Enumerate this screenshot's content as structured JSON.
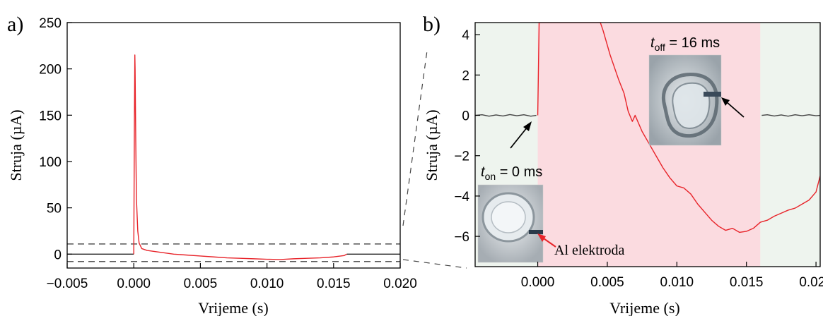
{
  "chart_data": [
    {
      "panel_label": "a)",
      "type": "line",
      "xlabel": "Vrijeme (s)",
      "ylabel": "Struja (µA)",
      "xlim": [
        -0.005,
        0.02
      ],
      "ylim": [
        -15,
        250
      ],
      "xticks": [
        -0.005,
        0.0,
        0.005,
        0.01,
        0.015,
        0.02
      ],
      "xtick_labels": [
        "−0.005",
        "0.000",
        "0.005",
        "0.010",
        "0.015",
        "0.020"
      ],
      "yticks": [
        0,
        50,
        100,
        150,
        200,
        250
      ],
      "ytick_labels": [
        "0",
        "50",
        "100",
        "150",
        "200",
        "250"
      ],
      "grid": false,
      "series": [
        {
          "color": "#222222",
          "points": [
            [
              -0.005,
              0
            ],
            [
              0.0,
              0
            ]
          ]
        },
        {
          "color": "#e8242a",
          "points": [
            [
              0.0,
              0
            ],
            [
              2e-05,
              60
            ],
            [
              5e-05,
              150
            ],
            [
              8e-05,
              215
            ],
            [
              0.0001,
              200
            ],
            [
              0.00015,
              120
            ],
            [
              0.0002,
              60
            ],
            [
              0.0003,
              25
            ],
            [
              0.0004,
              12
            ],
            [
              0.0006,
              6
            ],
            [
              0.001,
              4
            ],
            [
              0.002,
              2
            ],
            [
              0.003,
              0
            ],
            [
              0.004,
              -1
            ],
            [
              0.005,
              -2
            ],
            [
              0.006,
              -3
            ],
            [
              0.007,
              -4
            ],
            [
              0.008,
              -4.5
            ],
            [
              0.009,
              -5
            ],
            [
              0.01,
              -5.5
            ],
            [
              0.011,
              -5.8
            ],
            [
              0.012,
              -5
            ],
            [
              0.013,
              -4.5
            ],
            [
              0.014,
              -4
            ],
            [
              0.015,
              -3
            ],
            [
              0.0158,
              -1.5
            ],
            [
              0.016,
              0
            ]
          ]
        },
        {
          "color": "#222222",
          "points": [
            [
              0.016,
              0
            ],
            [
              0.02,
              0
            ]
          ]
        }
      ],
      "reference_lines": [
        {
          "y": 11,
          "style": "dashed",
          "color": "#555555"
        },
        {
          "y": -8,
          "style": "dashed",
          "color": "#555555"
        }
      ]
    },
    {
      "panel_label": "b)",
      "type": "line",
      "xlabel": "Vrijeme (s)",
      "ylabel": "Struja (µA)",
      "xlim": [
        -0.0045,
        0.0203
      ],
      "ylim": [
        -7.5,
        4.6
      ],
      "xticks": [
        0.0,
        0.005,
        0.01,
        0.015,
        0.02
      ],
      "xtick_labels": [
        "0.000",
        "0.005",
        "0.010",
        "0.015",
        "0.020"
      ],
      "yticks": [
        -6,
        -4,
        -2,
        0,
        2,
        4
      ],
      "ytick_labels": [
        "−6",
        "−4",
        "−2",
        "0",
        "2",
        "4"
      ],
      "grid": false,
      "shaded_regions": [
        {
          "x": [
            -0.0045,
            0.0
          ],
          "color": "#eef4ee"
        },
        {
          "x": [
            0.0,
            0.016
          ],
          "color": "#fbdbe0"
        },
        {
          "x": [
            0.016,
            0.0203
          ],
          "color": "#eef4ee"
        }
      ],
      "series": [
        {
          "color": "#444444",
          "points": [
            [
              -0.0045,
              0.0
            ],
            [
              -0.004,
              0.03
            ],
            [
              -0.0035,
              -0.04
            ],
            [
              -0.003,
              0.02
            ],
            [
              -0.0025,
              -0.03
            ],
            [
              -0.002,
              0.04
            ],
            [
              -0.0015,
              -0.02
            ],
            [
              -0.001,
              0.03
            ],
            [
              -0.0005,
              -0.04
            ],
            [
              -0.0001,
              0.0
            ]
          ]
        },
        {
          "color": "#e8242a",
          "points": [
            [
              0.0,
              0.0
            ],
            [
              0.0001,
              4.6
            ],
            [
              0.0045,
              4.6
            ],
            [
              0.0047,
              4.2
            ],
            [
              0.0052,
              3.0
            ],
            [
              0.0058,
              1.8
            ],
            [
              0.0062,
              1.1
            ],
            [
              0.0065,
              0.2
            ],
            [
              0.0068,
              -0.3
            ],
            [
              0.007,
              0.0
            ],
            [
              0.0075,
              -0.8
            ],
            [
              0.008,
              -1.4
            ],
            [
              0.0085,
              -2.0
            ],
            [
              0.009,
              -2.6
            ],
            [
              0.0095,
              -3.1
            ],
            [
              0.01,
              -3.5
            ],
            [
              0.0105,
              -3.6
            ],
            [
              0.011,
              -3.9
            ],
            [
              0.0115,
              -4.4
            ],
            [
              0.012,
              -4.8
            ],
            [
              0.0125,
              -5.2
            ],
            [
              0.013,
              -5.5
            ],
            [
              0.0135,
              -5.7
            ],
            [
              0.014,
              -5.6
            ],
            [
              0.0145,
              -5.8
            ],
            [
              0.015,
              -5.75
            ],
            [
              0.0155,
              -5.6
            ],
            [
              0.016,
              -5.3
            ],
            [
              0.0165,
              -5.2
            ],
            [
              0.017,
              -5.0
            ],
            [
              0.0175,
              -4.85
            ],
            [
              0.018,
              -4.7
            ],
            [
              0.0185,
              -4.6
            ],
            [
              0.019,
              -4.4
            ],
            [
              0.0195,
              -4.2
            ],
            [
              0.02,
              -3.8
            ],
            [
              0.0203,
              -3.0
            ]
          ]
        },
        {
          "color": "#444444",
          "points": [
            [
              0.0161,
              0.0
            ],
            [
              0.0165,
              0.03
            ],
            [
              0.017,
              -0.03
            ],
            [
              0.0175,
              0.02
            ],
            [
              0.018,
              -0.04
            ],
            [
              0.0185,
              0.03
            ],
            [
              0.019,
              -0.02
            ],
            [
              0.0195,
              0.03
            ],
            [
              0.02,
              -0.02
            ],
            [
              0.0203,
              0.0
            ]
          ]
        }
      ],
      "annotations": {
        "t_on": {
          "t": "t",
          "sub": "on",
          "rest": " = 0 ms"
        },
        "t_off": {
          "t": "t",
          "sub": "off",
          "rest": " = 16 ms"
        },
        "electrode_label": "Al elektroda"
      }
    }
  ]
}
